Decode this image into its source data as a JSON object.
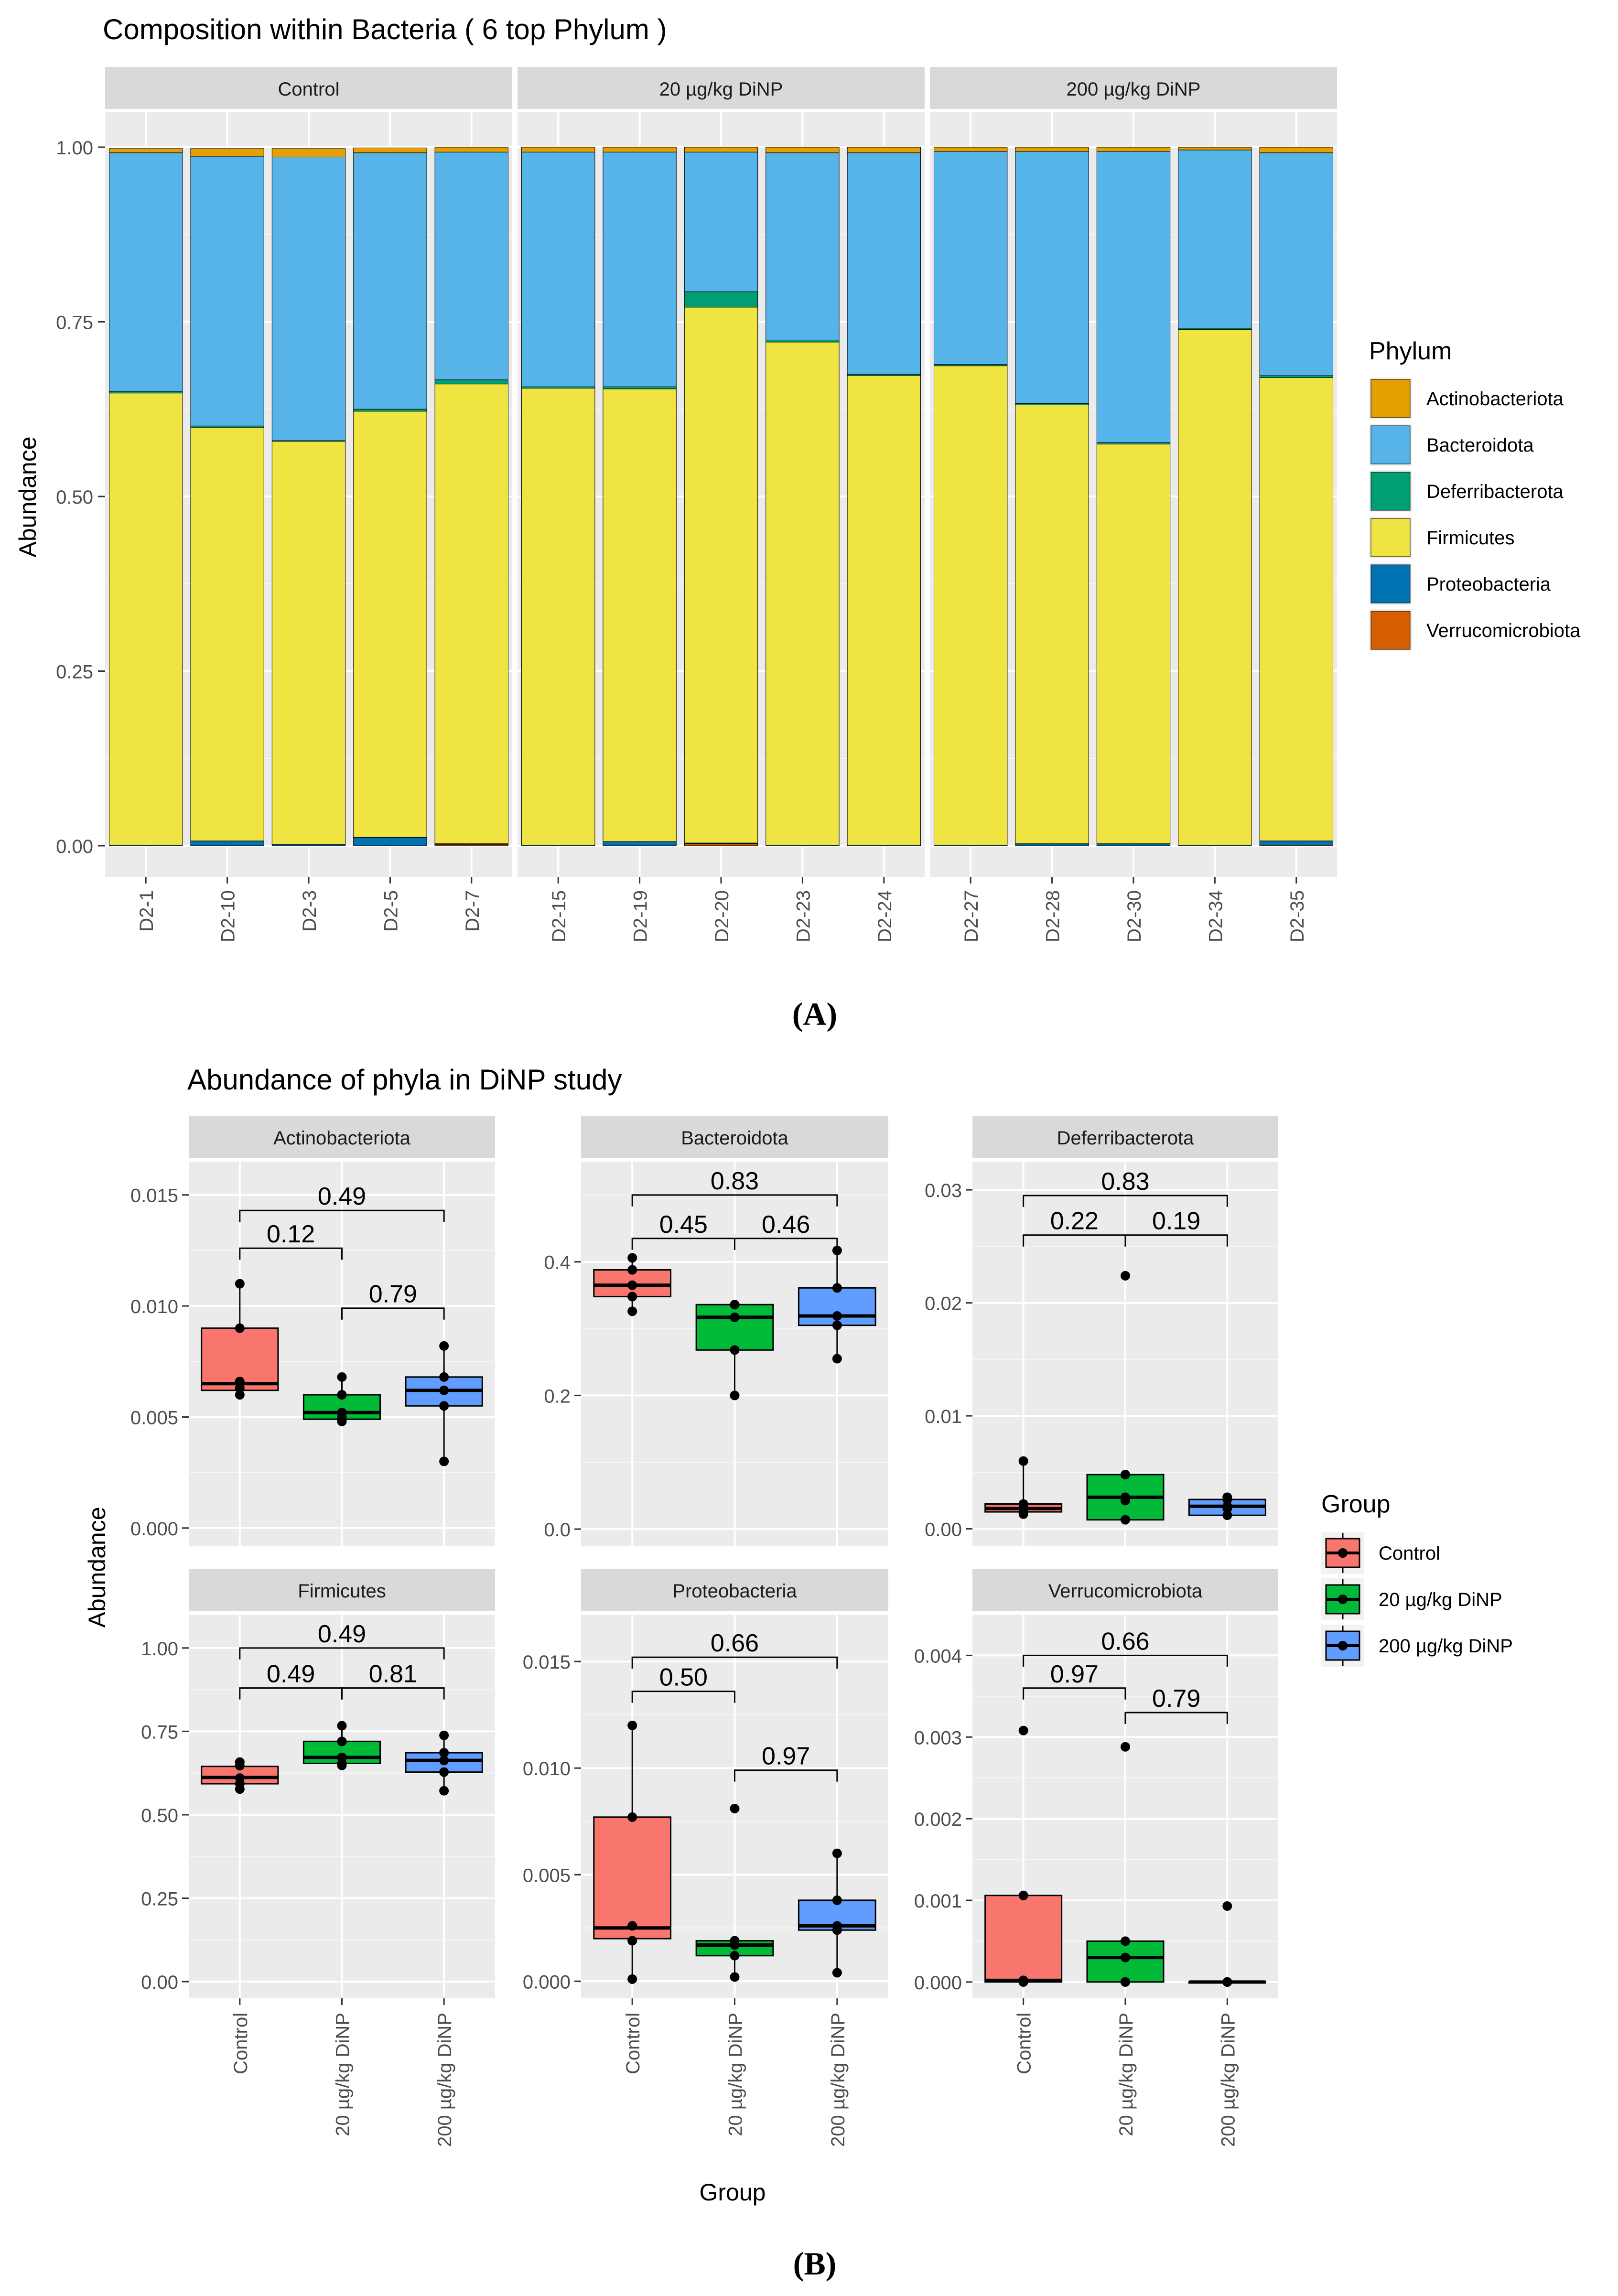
{
  "colors": {
    "Actinobacteriota": "#E69F00",
    "Bacteroidota": "#56B4E9",
    "Deferribacterota": "#009E73",
    "Firmicutes": "#F0E442",
    "Proteobacteria": "#0072B2",
    "Verrucomicrobiota": "#D55E00",
    "Control": "#F8766D",
    "20 µg/kg DiNP": "#00BA38",
    "200 µg/kg DiNP": "#619CFF"
  },
  "panelA": {
    "label": "(A)",
    "legend_title": "Phylum",
    "legend_items": [
      "Actinobacteriota",
      "Bacteroidota",
      "Deferribacterota",
      "Firmicutes",
      "Proteobacteria",
      "Verrucomicrobiota"
    ]
  },
  "panelB": {
    "label": "(B)",
    "legend_title": "Group",
    "legend_items": [
      "Control",
      "20 µg/kg DiNP",
      "200 µg/kg DiNP"
    ]
  },
  "chart_data": [
    {
      "type": "bar",
      "subtype": "stacked",
      "title": "Composition within Bacteria ( 6 top Phylum )",
      "xlabel": "",
      "ylabel": "Abundance",
      "ylim": [
        0,
        1.05
      ],
      "yticks": [
        "0.00",
        "0.25",
        "0.50",
        "0.75",
        "1.00"
      ],
      "stack_order": [
        "Verrucomicrobiota",
        "Proteobacteria",
        "Firmicutes",
        "Deferribacterota",
        "Bacteroidota",
        "Actinobacteriota"
      ],
      "facets": [
        {
          "name": "Control",
          "samples": [
            "D2-1",
            "D2-10",
            "D2-3",
            "D2-5",
            "D2-7"
          ],
          "values": {
            "Verrucomicrobiota": [
              0,
              0,
              0,
              0,
              0.002
            ],
            "Proteobacteria": [
              0.001,
              0.007,
              0.002,
              0.012,
              0.001
            ],
            "Firmicutes": [
              0.647,
              0.592,
              0.577,
              0.61,
              0.658
            ],
            "Deferribacterota": [
              0.002,
              0.002,
              0.001,
              0.003,
              0.006
            ],
            "Bacteroidota": [
              0.342,
              0.386,
              0.406,
              0.367,
              0.326
            ],
            "Actinobacteriota": [
              0.006,
              0.011,
              0.012,
              0.007,
              0.007
            ]
          }
        },
        {
          "name": "20 µg/kg DiNP",
          "samples": [
            "D2-15",
            "D2-19",
            "D2-20",
            "D2-23",
            "D2-24"
          ],
          "values": {
            "Verrucomicrobiota": [
              0,
              0,
              0.003,
              0,
              0
            ],
            "Proteobacteria": [
              0.001,
              0.006,
              0.001,
              0.001,
              0.001
            ],
            "Firmicutes": [
              0.654,
              0.648,
              0.767,
              0.72,
              0.672
            ],
            "Deferribacterota": [
              0.002,
              0.003,
              0.022,
              0.003,
              0.002
            ],
            "Bacteroidota": [
              0.336,
              0.336,
              0.2,
              0.268,
              0.317
            ],
            "Actinobacteriota": [
              0.007,
              0.007,
              0.007,
              0.008,
              0.008
            ]
          }
        },
        {
          "name": "200 µg/kg DiNP",
          "samples": [
            "D2-27",
            "D2-28",
            "D2-30",
            "D2-34",
            "D2-35"
          ],
          "values": {
            "Verrucomicrobiota": [
              0,
              0,
              0,
              0,
              0.001
            ],
            "Proteobacteria": [
              0.001,
              0.003,
              0.003,
              0.001,
              0.006
            ],
            "Firmicutes": [
              0.686,
              0.628,
              0.572,
              0.738,
              0.663
            ],
            "Deferribacterota": [
              0.002,
              0.002,
              0.002,
              0.002,
              0.003
            ],
            "Bacteroidota": [
              0.305,
              0.361,
              0.417,
              0.255,
              0.319
            ],
            "Actinobacteriota": [
              0.006,
              0.006,
              0.006,
              0.004,
              0.008
            ]
          }
        }
      ]
    },
    {
      "type": "box",
      "title": "Abundance of phyla in DiNP study",
      "xlabel": "Group",
      "ylabel": "Abundance",
      "groups": [
        "Control",
        "20 µg/kg DiNP",
        "200 µg/kg DiNP"
      ],
      "facets": [
        {
          "name": "Actinobacteriota",
          "ylim": [
            -0.0008,
            0.0165
          ],
          "yticks": [
            0,
            0.005,
            0.01,
            0.015
          ],
          "ytick_labels": [
            "0.000",
            "0.005",
            "0.010",
            "0.015"
          ],
          "boxes": [
            {
              "q1": 0.0062,
              "median": 0.0065,
              "q3": 0.009,
              "lo": 0.006,
              "hi": 0.011,
              "points": [
                0.006,
                0.0063,
                0.0066,
                0.009,
                0.011
              ]
            },
            {
              "q1": 0.0049,
              "median": 0.0052,
              "q3": 0.006,
              "lo": 0.0048,
              "hi": 0.0068,
              "points": [
                0.0048,
                0.005,
                0.0052,
                0.006,
                0.0068
              ]
            },
            {
              "q1": 0.0055,
              "median": 0.0062,
              "q3": 0.0068,
              "lo": 0.003,
              "hi": 0.0082,
              "points": [
                0.003,
                0.0055,
                0.0062,
                0.0068,
                0.0082
              ]
            }
          ],
          "pvalues": [
            {
              "a": 0,
              "b": 1,
              "p": "0.12",
              "y": 0.0126
            },
            {
              "a": 1,
              "b": 2,
              "p": "0.79",
              "y": 0.0099
            },
            {
              "a": 0,
              "b": 2,
              "p": "0.49",
              "y": 0.0143
            }
          ]
        },
        {
          "name": "Bacteroidota",
          "ylim": [
            -0.025,
            0.55
          ],
          "yticks": [
            0,
            0.2,
            0.4
          ],
          "ytick_labels": [
            "0.0",
            "0.2",
            "0.4"
          ],
          "boxes": [
            {
              "q1": 0.348,
              "median": 0.365,
              "q3": 0.388,
              "lo": 0.326,
              "hi": 0.406,
              "points": [
                0.326,
                0.348,
                0.365,
                0.388,
                0.406
              ]
            },
            {
              "q1": 0.268,
              "median": 0.317,
              "q3": 0.336,
              "lo": 0.2,
              "hi": 0.336,
              "points": [
                0.2,
                0.268,
                0.317,
                0.336,
                0.336
              ]
            },
            {
              "q1": 0.305,
              "median": 0.319,
              "q3": 0.361,
              "lo": 0.255,
              "hi": 0.417,
              "points": [
                0.255,
                0.305,
                0.319,
                0.361,
                0.417
              ]
            }
          ],
          "pvalues": [
            {
              "a": 0,
              "b": 1,
              "p": "0.45",
              "y": 0.435
            },
            {
              "a": 1,
              "b": 2,
              "p": "0.46",
              "y": 0.435
            },
            {
              "a": 0,
              "b": 2,
              "p": "0.83",
              "y": 0.5
            }
          ]
        },
        {
          "name": "Deferribacterota",
          "ylim": [
            -0.0015,
            0.0325
          ],
          "yticks": [
            0,
            0.01,
            0.02,
            0.03
          ],
          "ytick_labels": [
            "0.00",
            "0.01",
            "0.02",
            "0.03"
          ],
          "boxes": [
            {
              "q1": 0.0015,
              "median": 0.0018,
              "q3": 0.0022,
              "lo": 0.0013,
              "hi": 0.006,
              "points": [
                0.0013,
                0.0015,
                0.0018,
                0.0022,
                0.006
              ]
            },
            {
              "q1": 0.0008,
              "median": 0.0028,
              "q3": 0.0048,
              "lo": 0.0008,
              "hi": 0.0048,
              "points": [
                0.0008,
                0.0025,
                0.0028,
                0.0048,
                0.0224
              ]
            },
            {
              "q1": 0.0012,
              "median": 0.002,
              "q3": 0.0026,
              "lo": 0.0012,
              "hi": 0.0028,
              "points": [
                0.0012,
                0.0018,
                0.002,
                0.0026,
                0.0028
              ]
            }
          ],
          "pvalues": [
            {
              "a": 0,
              "b": 1,
              "p": "0.22",
              "y": 0.026
            },
            {
              "a": 1,
              "b": 2,
              "p": "0.19",
              "y": 0.026
            },
            {
              "a": 0,
              "b": 2,
              "p": "0.83",
              "y": 0.0295
            }
          ]
        },
        {
          "name": "Firmicutes",
          "ylim": [
            -0.05,
            1.1
          ],
          "yticks": [
            0,
            0.25,
            0.5,
            0.75,
            1.0
          ],
          "ytick_labels": [
            "0.00",
            "0.25",
            "0.50",
            "0.75",
            "1.00"
          ],
          "boxes": [
            {
              "q1": 0.593,
              "median": 0.612,
              "q3": 0.645,
              "lo": 0.577,
              "hi": 0.658,
              "points": [
                0.577,
                0.593,
                0.61,
                0.647,
                0.658
              ]
            },
            {
              "q1": 0.654,
              "median": 0.672,
              "q3": 0.72,
              "lo": 0.648,
              "hi": 0.767,
              "points": [
                0.648,
                0.654,
                0.672,
                0.72,
                0.767
              ]
            },
            {
              "q1": 0.628,
              "median": 0.663,
              "q3": 0.686,
              "lo": 0.572,
              "hi": 0.738,
              "points": [
                0.572,
                0.628,
                0.663,
                0.686,
                0.738
              ]
            }
          ],
          "pvalues": [
            {
              "a": 0,
              "b": 1,
              "p": "0.49",
              "y": 0.88
            },
            {
              "a": 1,
              "b": 2,
              "p": "0.81",
              "y": 0.88
            },
            {
              "a": 0,
              "b": 2,
              "p": "0.49",
              "y": 1.0
            }
          ]
        },
        {
          "name": "Proteobacteria",
          "ylim": [
            -0.0008,
            0.0172
          ],
          "yticks": [
            0,
            0.005,
            0.01,
            0.015
          ],
          "ytick_labels": [
            "0.000",
            "0.005",
            "0.010",
            "0.015"
          ],
          "boxes": [
            {
              "q1": 0.002,
              "median": 0.0025,
              "q3": 0.0077,
              "lo": 0.0001,
              "hi": 0.012,
              "points": [
                0.0001,
                0.0019,
                0.0026,
                0.0077,
                0.012
              ]
            },
            {
              "q1": 0.0012,
              "median": 0.0017,
              "q3": 0.0019,
              "lo": 0.0002,
              "hi": 0.0019,
              "points": [
                0.0002,
                0.0012,
                0.0017,
                0.0019,
                0.0081
              ]
            },
            {
              "q1": 0.0024,
              "median": 0.0026,
              "q3": 0.0038,
              "lo": 0.0004,
              "hi": 0.006,
              "points": [
                0.0004,
                0.0024,
                0.0026,
                0.0038,
                0.006
              ]
            }
          ],
          "pvalues": [
            {
              "a": 0,
              "b": 1,
              "p": "0.50",
              "y": 0.0136
            },
            {
              "a": 1,
              "b": 2,
              "p": "0.97",
              "y": 0.0099
            },
            {
              "a": 0,
              "b": 2,
              "p": "0.66",
              "y": 0.0152
            }
          ]
        },
        {
          "name": "Verrucomicrobiota",
          "ylim": [
            -0.0002,
            0.0045
          ],
          "yticks": [
            0,
            0.001,
            0.002,
            0.003,
            0.004
          ],
          "ytick_labels": [
            "0.000",
            "0.001",
            "0.002",
            "0.003",
            "0.004"
          ],
          "boxes": [
            {
              "q1": 0.0,
              "median": 2e-05,
              "q3": 0.00106,
              "lo": 0.0,
              "hi": 0.00106,
              "points": [
                0.0,
                0.0,
                2e-05,
                0.00106,
                0.00308
              ]
            },
            {
              "q1": 0.0,
              "median": 0.0003,
              "q3": 0.0005,
              "lo": 0.0,
              "hi": 0.0005,
              "points": [
                0.0,
                0.0,
                0.0003,
                0.0005,
                0.00288
              ]
            },
            {
              "q1": 0.0,
              "median": 0.0,
              "q3": 0.0,
              "lo": 0.0,
              "hi": 0.0,
              "points": [
                0.0,
                0.0,
                0.0,
                0.0,
                0.00093
              ]
            }
          ],
          "pvalues": [
            {
              "a": 0,
              "b": 1,
              "p": "0.97",
              "y": 0.0036
            },
            {
              "a": 1,
              "b": 2,
              "p": "0.79",
              "y": 0.0033
            },
            {
              "a": 0,
              "b": 2,
              "p": "0.66",
              "y": 0.004
            }
          ]
        }
      ]
    }
  ]
}
